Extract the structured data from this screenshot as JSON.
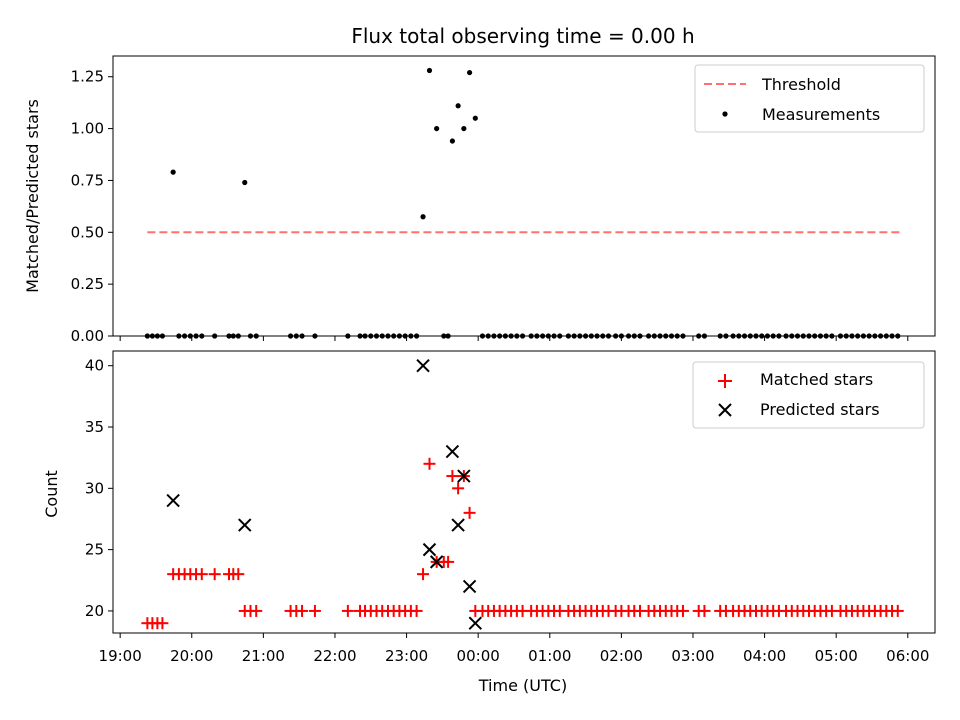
{
  "chart_data": [
    {
      "type": "scatter",
      "title": "Flux total observing time = 0.00 h",
      "xlabel": "",
      "ylabel": "Matched/Predicted stars",
      "xlim": [
        18.9,
        30.38
      ],
      "ylim": [
        0.0,
        1.35
      ],
      "yticks": [
        "0.00",
        "0.25",
        "0.50",
        "0.75",
        "1.00",
        "1.25"
      ],
      "ytick_values": [
        0.0,
        0.25,
        0.5,
        0.75,
        1.0,
        1.25
      ],
      "legend": {
        "location": "upper-right",
        "entries": [
          "Threshold",
          "Measurements"
        ]
      },
      "colors": {
        "threshold": "#ff7070",
        "measurements": "#000000"
      },
      "series": [
        {
          "name": "Threshold",
          "kind": "dashed-line",
          "x": [
            19.38,
            29.9
          ],
          "y": [
            0.5,
            0.5
          ]
        },
        {
          "name": "Measurements",
          "kind": "points",
          "x": [
            19.38,
            19.45,
            19.52,
            19.59,
            19.74,
            19.82,
            19.9,
            19.98,
            20.06,
            20.14,
            20.32,
            20.52,
            20.58,
            20.65,
            20.74,
            20.82,
            20.9,
            21.38,
            21.46,
            21.54,
            21.72,
            22.18,
            22.35,
            22.42,
            22.5,
            22.58,
            22.66,
            22.74,
            22.82,
            22.9,
            22.98,
            23.06,
            23.14,
            23.23,
            23.32,
            23.42,
            23.52,
            23.58,
            23.64,
            23.72,
            23.8,
            23.88,
            23.96,
            24.06,
            24.14,
            24.22,
            24.3,
            24.38,
            24.46,
            24.54,
            24.62,
            24.74,
            24.82,
            24.9,
            24.98,
            25.06,
            25.14,
            25.26,
            25.34,
            25.42,
            25.5,
            25.58,
            25.66,
            25.74,
            25.82,
            25.92,
            26.0,
            26.1,
            26.18,
            26.26,
            26.38,
            26.46,
            26.54,
            26.62,
            26.7,
            26.78,
            26.86,
            27.08,
            27.16,
            27.38,
            27.46,
            27.56,
            27.64,
            27.72,
            27.8,
            27.88,
            27.96,
            28.04,
            28.12,
            28.2,
            28.3,
            28.38,
            28.46,
            28.54,
            28.62,
            28.7,
            28.78,
            28.86,
            28.94,
            29.06,
            29.14,
            29.22,
            29.3,
            29.38,
            29.46,
            29.54,
            29.62,
            29.7,
            29.78,
            29.86
          ],
          "y": [
            0,
            0,
            0,
            0,
            0.79,
            0,
            0,
            0,
            0,
            0,
            0,
            0,
            0,
            0,
            0.74,
            0,
            0,
            0,
            0,
            0,
            0,
            0,
            0,
            0,
            0,
            0,
            0,
            0,
            0,
            0,
            0,
            0,
            0,
            0.575,
            1.28,
            1.0,
            0,
            0,
            0.94,
            1.11,
            1.0,
            1.27,
            1.05,
            0,
            0,
            0,
            0,
            0,
            0,
            0,
            0,
            0,
            0,
            0,
            0,
            0,
            0,
            0,
            0,
            0,
            0,
            0,
            0,
            0,
            0,
            0,
            0,
            0,
            0,
            0,
            0,
            0,
            0,
            0,
            0,
            0,
            0,
            0,
            0,
            0,
            0,
            0,
            0,
            0,
            0,
            0,
            0,
            0,
            0,
            0,
            0,
            0,
            0,
            0,
            0,
            0,
            0,
            0,
            0,
            0,
            0,
            0,
            0,
            0,
            0,
            0,
            0,
            0,
            0,
            0
          ]
        }
      ]
    },
    {
      "type": "scatter",
      "title": "",
      "xlabel": "Time (UTC)",
      "ylabel": "Count",
      "xlim": [
        18.9,
        30.38
      ],
      "ylim": [
        18.2,
        41.2
      ],
      "xticks": [
        "19:00",
        "20:00",
        "21:00",
        "22:00",
        "23:00",
        "00:00",
        "01:00",
        "02:00",
        "03:00",
        "04:00",
        "05:00",
        "06:00"
      ],
      "xtick_values": [
        19,
        20,
        21,
        22,
        23,
        24,
        25,
        26,
        27,
        28,
        29,
        30
      ],
      "yticks": [
        "20",
        "25",
        "30",
        "35",
        "40"
      ],
      "ytick_values": [
        20,
        25,
        30,
        35,
        40
      ],
      "legend": {
        "location": "upper-right",
        "entries": [
          "Matched stars",
          "Predicted stars"
        ]
      },
      "colors": {
        "matched": "#ff0000",
        "predicted": "#000000"
      },
      "series": [
        {
          "name": "Matched stars",
          "marker": "plus",
          "x": [
            19.38,
            19.45,
            19.52,
            19.59,
            19.74,
            19.82,
            19.9,
            19.98,
            20.06,
            20.14,
            20.32,
            20.52,
            20.58,
            20.65,
            20.74,
            20.82,
            20.9,
            21.38,
            21.46,
            21.54,
            21.72,
            22.18,
            22.35,
            22.42,
            22.5,
            22.58,
            22.66,
            22.74,
            22.82,
            22.9,
            22.98,
            23.06,
            23.14,
            23.23,
            23.32,
            23.42,
            23.52,
            23.58,
            23.64,
            23.72,
            23.8,
            23.88,
            23.96,
            24.06,
            24.14,
            24.22,
            24.3,
            24.38,
            24.46,
            24.54,
            24.62,
            24.74,
            24.82,
            24.9,
            24.98,
            25.06,
            25.14,
            25.26,
            25.34,
            25.42,
            25.5,
            25.58,
            25.66,
            25.74,
            25.82,
            25.92,
            26.0,
            26.1,
            26.18,
            26.26,
            26.38,
            26.46,
            26.54,
            26.62,
            26.7,
            26.78,
            26.86,
            27.08,
            27.16,
            27.38,
            27.46,
            27.56,
            27.64,
            27.72,
            27.8,
            27.88,
            27.96,
            28.04,
            28.12,
            28.2,
            28.3,
            28.38,
            28.46,
            28.54,
            28.62,
            28.7,
            28.78,
            28.86,
            28.94,
            29.06,
            29.14,
            29.22,
            29.3,
            29.38,
            29.46,
            29.54,
            29.62,
            29.7,
            29.78,
            29.86
          ],
          "y": [
            19,
            19,
            19,
            19,
            23,
            23,
            23,
            23,
            23,
            23,
            23,
            23,
            23,
            23,
            20,
            20,
            20,
            20,
            20,
            20,
            20,
            20,
            20,
            20,
            20,
            20,
            20,
            20,
            20,
            20,
            20,
            20,
            20,
            23,
            32,
            24,
            24,
            24,
            31,
            30,
            31,
            28,
            20,
            20,
            20,
            20,
            20,
            20,
            20,
            20,
            20,
            20,
            20,
            20,
            20,
            20,
            20,
            20,
            20,
            20,
            20,
            20,
            20,
            20,
            20,
            20,
            20,
            20,
            20,
            20,
            20,
            20,
            20,
            20,
            20,
            20,
            20,
            20,
            20,
            20,
            20,
            20,
            20,
            20,
            20,
            20,
            20,
            20,
            20,
            20,
            20,
            20,
            20,
            20,
            20,
            20,
            20,
            20,
            20,
            20,
            20,
            20,
            20,
            20,
            20,
            20,
            20,
            20,
            20,
            20
          ]
        },
        {
          "name": "Predicted stars",
          "marker": "x",
          "x": [
            19.74,
            20.74,
            23.23,
            23.32,
            23.42,
            23.64,
            23.72,
            23.8,
            23.88,
            23.96
          ],
          "y": [
            29,
            27,
            40,
            25,
            24,
            33,
            27,
            31,
            22,
            19
          ]
        }
      ]
    }
  ]
}
